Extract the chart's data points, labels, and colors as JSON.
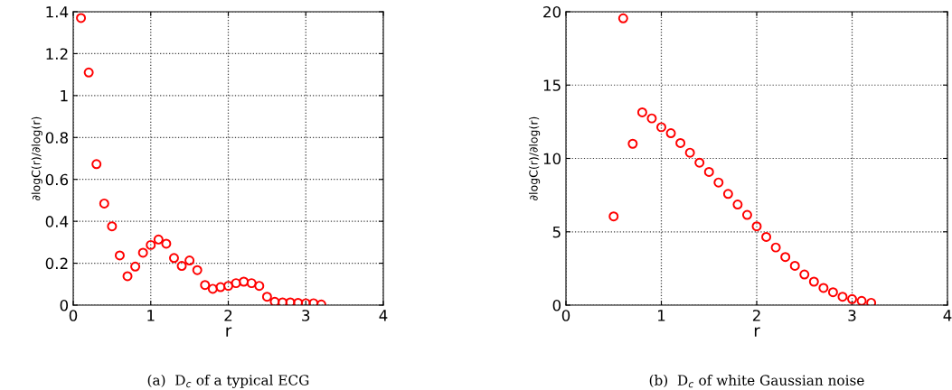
{
  "chart_data": [
    {
      "type": "scatter",
      "xlabel": "r",
      "ylabel": "∂logC(r)/∂log(r)",
      "annotations": [
        "(a)  D$_{c}$ of a typical ECG"
      ],
      "x": [
        0.1,
        0.2,
        0.3,
        0.4,
        0.5,
        0.6,
        0.7,
        0.8,
        0.9,
        1.0,
        1.1,
        1.2,
        1.3,
        1.4,
        1.5,
        1.6,
        1.7,
        1.8,
        1.9,
        2.0,
        2.1,
        2.2,
        2.3,
        2.4,
        2.5,
        2.6,
        2.7,
        2.8,
        2.9,
        3.0,
        3.1,
        3.2
      ],
      "series": [
        {
          "color": "#ff0000",
          "values": [
            1.37,
            1.11,
            0.673,
            0.485,
            0.376,
            0.237,
            0.138,
            0.184,
            0.25,
            0.287,
            0.313,
            0.293,
            0.225,
            0.187,
            0.213,
            0.167,
            0.096,
            0.078,
            0.086,
            0.092,
            0.105,
            0.112,
            0.105,
            0.092,
            0.04,
            0.016,
            0.013,
            0.013,
            0.011,
            0.009,
            0.009,
            0.003
          ]
        }
      ],
      "xlim": [
        0,
        4
      ],
      "xticks": [
        0,
        1,
        2,
        3,
        4
      ],
      "ylim": [
        0,
        1.4
      ],
      "yticks": [
        0,
        0.2,
        0.4,
        0.6,
        0.8,
        1,
        1.2,
        1.4
      ],
      "grid": true,
      "marker": "circle"
    },
    {
      "type": "scatter",
      "xlabel": "r",
      "ylabel": "∂logC(r)/∂log(r)",
      "annotations": [
        "(b)  D$_{c}$ of white Gaussian noise"
      ],
      "x": [
        0.5,
        0.6,
        0.7,
        0.8,
        0.9,
        1.0,
        1.1,
        1.2,
        1.3,
        1.4,
        1.5,
        1.6,
        1.7,
        1.8,
        1.9,
        2.0,
        2.1,
        2.2,
        2.3,
        2.4,
        2.5,
        2.6,
        2.7,
        2.8,
        2.9,
        3.0,
        3.1,
        3.2
      ],
      "series": [
        {
          "color": "#ff0000",
          "values": [
            6.05,
            19.55,
            11.0,
            13.14,
            12.73,
            12.13,
            11.72,
            11.05,
            10.39,
            9.71,
            9.08,
            8.36,
            7.58,
            6.86,
            6.15,
            5.37,
            4.65,
            3.93,
            3.28,
            2.68,
            2.09,
            1.6,
            1.17,
            0.88,
            0.57,
            0.41,
            0.29,
            0.16
          ]
        }
      ],
      "xlim": [
        0,
        4
      ],
      "xticks": [
        0,
        1,
        2,
        3,
        4
      ],
      "ylim": [
        0,
        20
      ],
      "yticks": [
        0,
        5,
        10,
        15,
        20
      ],
      "grid": true,
      "marker": "circle"
    }
  ]
}
